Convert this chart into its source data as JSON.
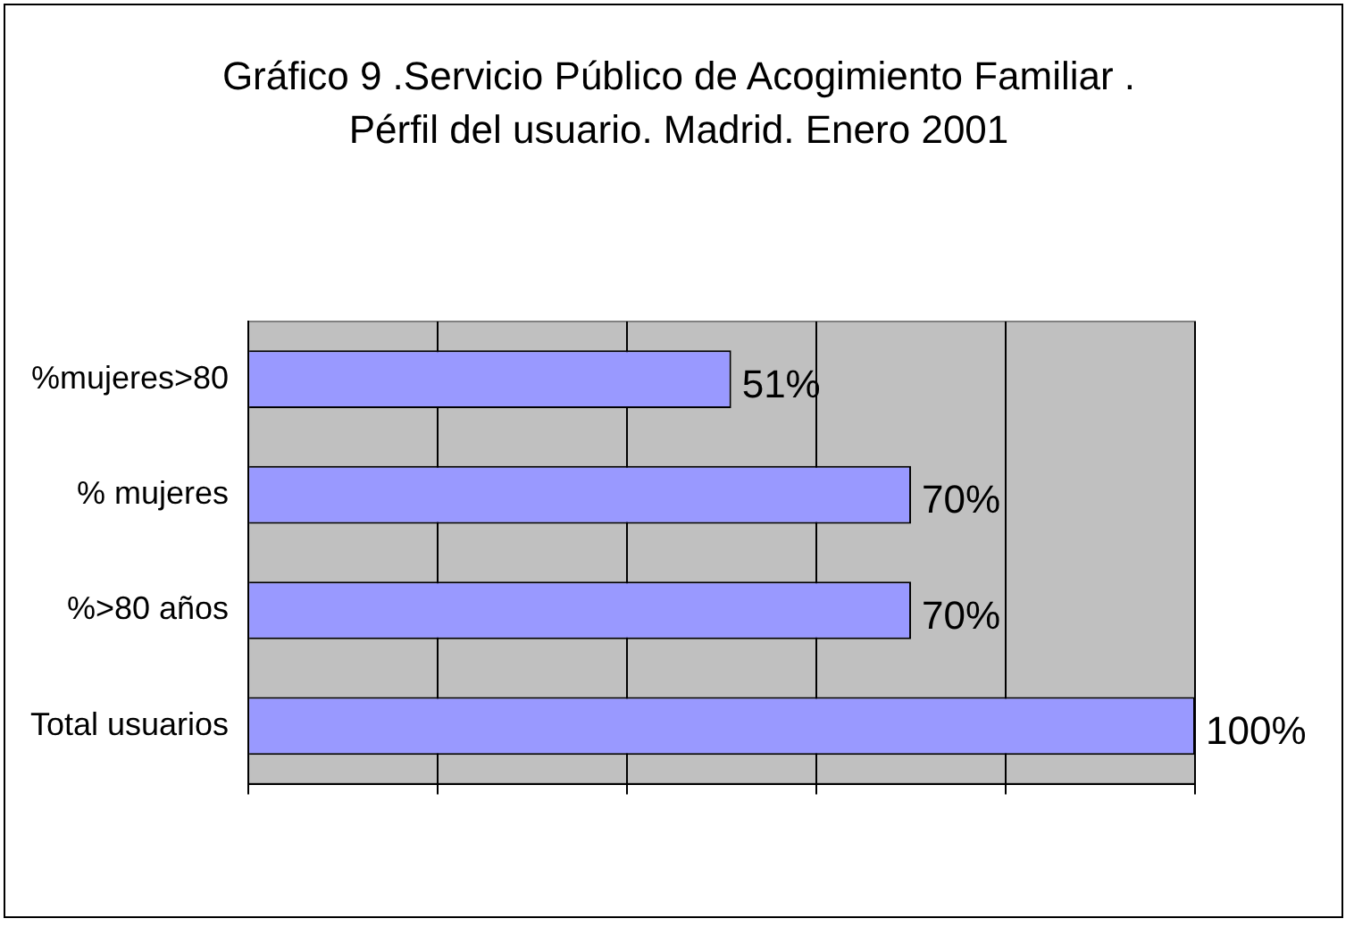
{
  "chart_data": {
    "type": "bar",
    "orientation": "horizontal",
    "title": "Gráfico 9 .Servicio Público de Acogimiento Familiar . Pérfil del usuario. Madrid. Enero 2001",
    "categories": [
      "%mujeres>80",
      "% mujeres",
      "%>80 años",
      "Total usuarios"
    ],
    "values": [
      51,
      70,
      70,
      100
    ],
    "color": "#9999ff",
    "value_labels": [
      "51%",
      "70%",
      "70%",
      "100%"
    ],
    "xlim": [
      0,
      100
    ],
    "xticks": [
      {
        "value": 0,
        "label": null
      },
      {
        "value": 20,
        "label": null
      },
      {
        "value": 40,
        "label": null
      },
      {
        "value": 60,
        "label": null
      },
      {
        "value": 80,
        "label": null
      },
      {
        "value": 100,
        "label": null
      }
    ],
    "grid": "x",
    "legend": false
  }
}
